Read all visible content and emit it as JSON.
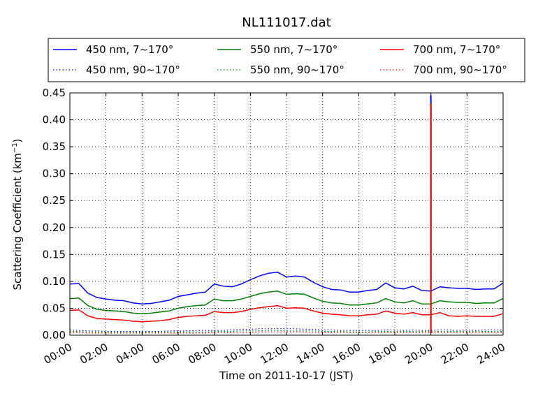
{
  "chart_data": {
    "type": "line",
    "title": "NL111017.dat",
    "xlabel": "Time on 2011-10-17 (JST)",
    "ylabel": "Scattering Coefficient (km",
    "ylabel_superscript": "−1",
    "ylabel_suffix": ")",
    "xlim": [
      "00:00",
      "24:00"
    ],
    "ylim": [
      0.0,
      0.45
    ],
    "xticks": [
      "00:00",
      "02:00",
      "04:00",
      "06:00",
      "08:00",
      "10:00",
      "12:00",
      "14:00",
      "16:00",
      "18:00",
      "20:00",
      "22:00",
      "24:00"
    ],
    "yticks": [
      "0.00",
      "0.05",
      "0.10",
      "0.15",
      "0.20",
      "0.25",
      "0.30",
      "0.35",
      "0.40",
      "0.45"
    ],
    "grid": true,
    "legend_position": "top",
    "x_hours": [
      0,
      0.5,
      1,
      1.5,
      2,
      2.5,
      3,
      3.5,
      4,
      4.5,
      5,
      5.5,
      6,
      6.5,
      7,
      7.5,
      8,
      8.5,
      9,
      9.5,
      10,
      10.5,
      11,
      11.5,
      12,
      12.5,
      13,
      13.5,
      14,
      14.5,
      15,
      15.5,
      16,
      16.5,
      17,
      17.5,
      18,
      18.5,
      19,
      19.5,
      20,
      20.5,
      21,
      21.5,
      22,
      22.5,
      23,
      23.5,
      24
    ],
    "series": [
      {
        "name": "450 nm, 7∼170°",
        "color": "#0000ff",
        "style": "solid",
        "values": [
          0.095,
          0.096,
          0.078,
          0.07,
          0.067,
          0.065,
          0.064,
          0.06,
          0.058,
          0.059,
          0.062,
          0.065,
          0.072,
          0.075,
          0.078,
          0.08,
          0.095,
          0.091,
          0.09,
          0.095,
          0.103,
          0.11,
          0.115,
          0.117,
          0.108,
          0.11,
          0.108,
          0.098,
          0.09,
          0.085,
          0.084,
          0.08,
          0.08,
          0.083,
          0.085,
          0.097,
          0.088,
          0.086,
          0.091,
          0.083,
          0.082,
          0.09,
          0.088,
          0.087,
          0.087,
          0.085,
          0.086,
          0.086,
          0.097
        ]
      },
      {
        "name": "450 nm, 90∼170°",
        "color": "#0000ff",
        "style": "dotted",
        "values": [
          0.01,
          0.009,
          0.008,
          0.008,
          0.007,
          0.007,
          0.007,
          0.007,
          0.007,
          0.007,
          0.007,
          0.008,
          0.008,
          0.008,
          0.009,
          0.009,
          0.009,
          0.009,
          0.01,
          0.011,
          0.011,
          0.012,
          0.012,
          0.012,
          0.012,
          0.012,
          0.011,
          0.011,
          0.01,
          0.01,
          0.009,
          0.009,
          0.009,
          0.009,
          0.009,
          0.01,
          0.01,
          0.009,
          0.01,
          0.009,
          0.009,
          0.01,
          0.01,
          0.009,
          0.01,
          0.009,
          0.01,
          0.01,
          0.01
        ]
      },
      {
        "name": "550 nm, 7∼170°",
        "color": "#008000",
        "style": "solid",
        "values": [
          0.068,
          0.069,
          0.055,
          0.048,
          0.046,
          0.045,
          0.044,
          0.041,
          0.04,
          0.041,
          0.043,
          0.045,
          0.05,
          0.053,
          0.055,
          0.056,
          0.067,
          0.064,
          0.064,
          0.067,
          0.072,
          0.077,
          0.08,
          0.082,
          0.076,
          0.077,
          0.076,
          0.069,
          0.063,
          0.06,
          0.059,
          0.056,
          0.056,
          0.058,
          0.06,
          0.068,
          0.062,
          0.06,
          0.064,
          0.058,
          0.058,
          0.064,
          0.062,
          0.061,
          0.061,
          0.059,
          0.06,
          0.06,
          0.068
        ]
      },
      {
        "name": "550 nm, 90∼170°",
        "color": "#008000",
        "style": "dotted",
        "values": [
          0.007,
          0.007,
          0.006,
          0.006,
          0.005,
          0.005,
          0.005,
          0.005,
          0.005,
          0.005,
          0.005,
          0.006,
          0.006,
          0.006,
          0.006,
          0.006,
          0.007,
          0.007,
          0.007,
          0.008,
          0.008,
          0.008,
          0.009,
          0.009,
          0.008,
          0.008,
          0.008,
          0.008,
          0.007,
          0.007,
          0.007,
          0.006,
          0.006,
          0.006,
          0.007,
          0.007,
          0.007,
          0.007,
          0.007,
          0.007,
          0.007,
          0.007,
          0.007,
          0.007,
          0.007,
          0.007,
          0.007,
          0.007,
          0.007
        ]
      },
      {
        "name": "700 nm, 7∼170°",
        "color": "#ff0000",
        "style": "solid",
        "values": [
          0.046,
          0.047,
          0.036,
          0.031,
          0.03,
          0.029,
          0.028,
          0.026,
          0.025,
          0.026,
          0.027,
          0.029,
          0.033,
          0.035,
          0.036,
          0.037,
          0.044,
          0.042,
          0.042,
          0.044,
          0.048,
          0.051,
          0.053,
          0.055,
          0.05,
          0.051,
          0.05,
          0.045,
          0.041,
          0.039,
          0.038,
          0.036,
          0.036,
          0.038,
          0.039,
          0.045,
          0.041,
          0.039,
          0.042,
          0.038,
          0.038,
          0.042,
          0.036,
          0.035,
          0.036,
          0.035,
          0.035,
          0.035,
          0.04
        ]
      },
      {
        "name": "700 nm, 90∼170°",
        "color": "#ff0000",
        "style": "dotted",
        "values": [
          0.005,
          0.005,
          0.004,
          0.004,
          0.004,
          0.004,
          0.004,
          0.004,
          0.004,
          0.004,
          0.004,
          0.004,
          0.004,
          0.004,
          0.004,
          0.004,
          0.005,
          0.005,
          0.005,
          0.005,
          0.005,
          0.006,
          0.006,
          0.006,
          0.006,
          0.006,
          0.006,
          0.005,
          0.005,
          0.005,
          0.005,
          0.005,
          0.005,
          0.005,
          0.005,
          0.005,
          0.005,
          0.005,
          0.005,
          0.005,
          0.005,
          0.005,
          0.005,
          0.005,
          0.005,
          0.005,
          0.005,
          0.005,
          0.005
        ]
      }
    ],
    "spike": {
      "x_hour": 20.0,
      "top_value": 0.445
    }
  }
}
